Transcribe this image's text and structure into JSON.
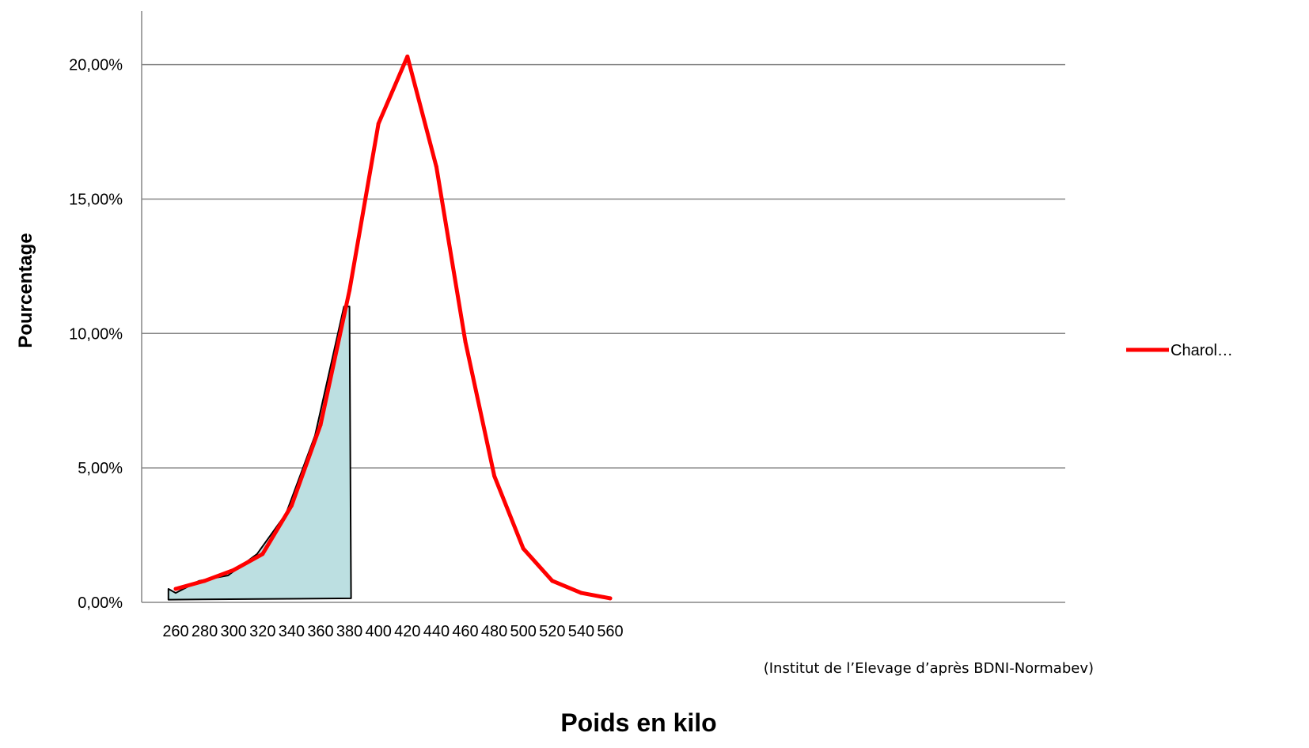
{
  "chart_data": {
    "type": "line",
    "x": [
      260,
      280,
      300,
      320,
      340,
      360,
      380,
      400,
      420,
      440,
      460,
      480,
      500,
      520,
      540,
      560
    ],
    "x_tick_labels": [
      "260",
      "280",
      "300",
      "320",
      "340",
      "360",
      "380",
      "400",
      "420",
      "440",
      "460",
      "480",
      "500",
      "520",
      "540",
      "560"
    ],
    "series": [
      {
        "name": "Charol…",
        "color": "#ff0000",
        "values": [
          0.5,
          0.8,
          1.2,
          1.8,
          3.6,
          6.6,
          11.6,
          17.8,
          20.3,
          16.2,
          9.7,
          4.7,
          2.0,
          0.8,
          0.35,
          0.15
        ]
      }
    ],
    "highlight_area": {
      "fill": "#bcdfe1",
      "stroke": "#000000",
      "x_range": [
        255,
        380
      ],
      "values": [
        0.35,
        0.8,
        1.0,
        1.8,
        3.3,
        6.2,
        11.0
      ]
    },
    "y_ticks": [
      0,
      5,
      10,
      15,
      20
    ],
    "y_tick_labels": [
      "0,00%",
      "5,00%",
      "10,00%",
      "15,00%",
      "20,00%"
    ],
    "ylim": [
      0,
      22
    ],
    "xlabel": "Poids en kilo",
    "ylabel": "Pourcentage",
    "source_note": "(Institut de l’Elevage d’après BDNI-Normabev)",
    "grid": true,
    "legend_position": "right",
    "legend_label": "Charol…"
  }
}
